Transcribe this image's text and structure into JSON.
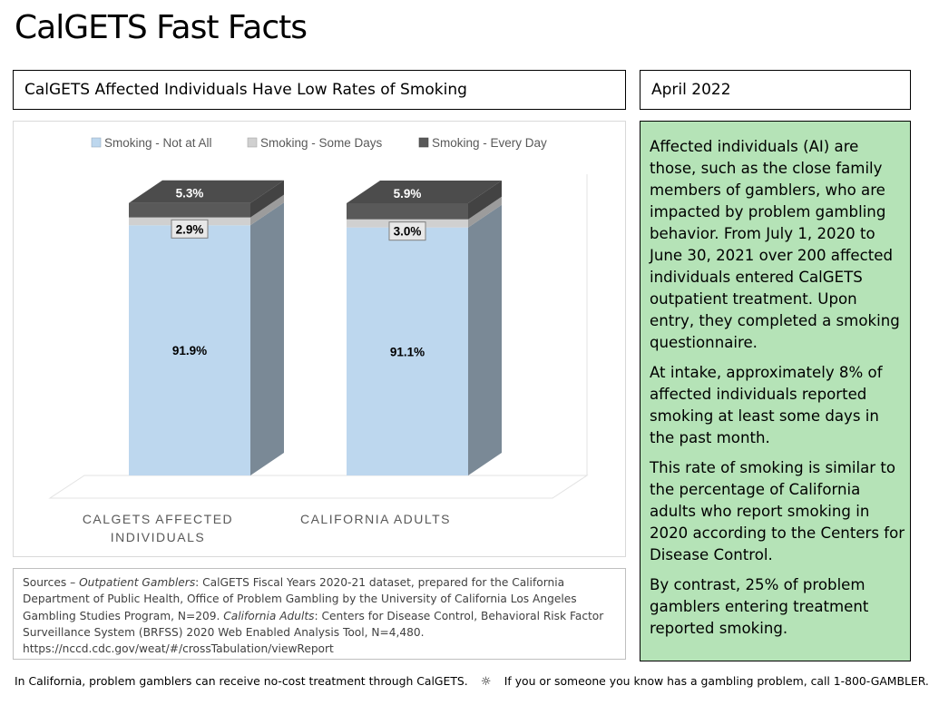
{
  "page": {
    "title": "CalGETS Fast Facts",
    "headline": "CalGETS Affected Individuals Have Low Rates of Smoking",
    "date": "April 2022"
  },
  "chart_data": {
    "type": "bar",
    "stacked": true,
    "three_d": true,
    "categories": [
      "CALGETS AFFECTED INDIVIDUALS",
      "CALIFORNIA ADULTS"
    ],
    "series": [
      {
        "name": "Smoking - Not at All",
        "values": [
          91.9,
          91.1
        ],
        "labels": [
          "91.9%",
          "91.1%"
        ],
        "color": "#bdd7ee"
      },
      {
        "name": "Smoking - Some Days",
        "values": [
          2.9,
          3.0
        ],
        "labels": [
          "2.9%",
          "3.0%"
        ],
        "color": "#d0d0d0"
      },
      {
        "name": "Smoking - Every Day",
        "values": [
          5.3,
          5.9
        ],
        "labels": [
          "5.3%",
          "5.9%"
        ],
        "color": "#595959"
      }
    ],
    "ylim": [
      0,
      100
    ],
    "legend_position": "top",
    "grid": false
  },
  "sources": {
    "prefix": "Sources – ",
    "og_label": "Outpatient Gamblers",
    "og_text": ": CalGETS Fiscal Years 2020-21 dataset, prepared for the California Department of Public Health, Office of Problem Gambling by the University of California Los Angeles Gambling Studies Program, N=209.  ",
    "ca_label": "California Adults",
    "ca_text": ": Centers for Disease Control, Behavioral Risk Factor Surveillance System (BRFSS) 2020 Web Enabled Analysis Tool, N=4,480.",
    "url": "https://nccd.cdc.gov/weat/#/crossTabulation/viewReport"
  },
  "info": {
    "p1": "Affected individuals (AI) are those, such as the close family members of gamblers, who are impacted by problem gambling behavior. From July 1, 2020 to June 30, 2021 over 200 affected individuals entered CalGETS outpatient treatment. Upon entry, they completed a smoking questionnaire.",
    "p2": "At intake, approximately 8% of affected individuals reported smoking at least some days in the past month.",
    "p3": "This rate of smoking is similar to the percentage of California adults who report smoking in 2020 according to the Centers for Disease Control.",
    "p4": "By contrast, 25% of problem gamblers entering treatment reported smoking."
  },
  "footer": {
    "left": "In California, problem gamblers can receive no-cost treatment through CalGETS.",
    "separator": "☼",
    "right": "If you or someone you know has a gambling problem, call 1-800-GAMBLER."
  }
}
